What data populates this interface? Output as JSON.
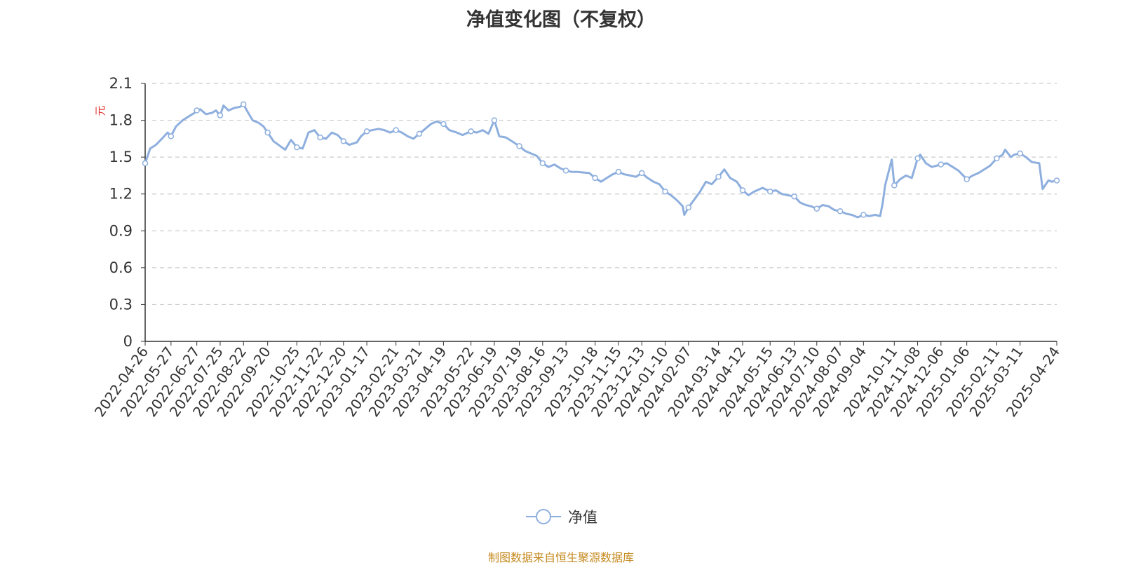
{
  "title": "净值变化图（不复权）",
  "footer": "制图数据来自恒生聚源数据库",
  "colors": {
    "line": "#8eafde",
    "axis": "#333333",
    "grid": "#cccccc",
    "unit": "#e03030",
    "footer": "#c58a1f"
  },
  "chart_data": {
    "type": "line",
    "y_unit": "元",
    "ylim": [
      0,
      2.1
    ],
    "y_ticks": [
      "0",
      "0.3",
      "0.6",
      "0.9",
      "1.2",
      "1.5",
      "1.8",
      "2.1"
    ],
    "x_tick_labels": [
      "2022-04-26",
      "2022-05-27",
      "2022-06-27",
      "2022-07-25",
      "2022-08-22",
      "2022-09-20",
      "2022-10-25",
      "2022-11-22",
      "2022-12-20",
      "2023-01-17",
      "2023-02-21",
      "2023-03-21",
      "2023-04-19",
      "2023-05-22",
      "2023-06-19",
      "2023-07-19",
      "2023-08-16",
      "2023-09-13",
      "2023-10-18",
      "2023-11-15",
      "2023-12-13",
      "2024-01-10",
      "2024-02-07",
      "2024-03-14",
      "2024-04-12",
      "2024-05-15",
      "2024-06-13",
      "2024-07-10",
      "2024-08-07",
      "2024-09-04",
      "2024-10-11",
      "2024-11-08",
      "2024-12-06",
      "2025-01-06",
      "2025-02-11",
      "2025-03-11",
      "2025-04-24"
    ],
    "grid": "horizontal dashed",
    "legend_position": "bottom-center",
    "series": [
      {
        "name": "净值",
        "points": [
          [
            "2022-04-26",
            1.45
          ],
          [
            "2022-05-02",
            1.57
          ],
          [
            "2022-05-09",
            1.6
          ],
          [
            "2022-05-16",
            1.65
          ],
          [
            "2022-05-23",
            1.7
          ],
          [
            "2022-05-27",
            1.67
          ],
          [
            "2022-06-02",
            1.75
          ],
          [
            "2022-06-10",
            1.8
          ],
          [
            "2022-06-17",
            1.83
          ],
          [
            "2022-06-24",
            1.86
          ],
          [
            "2022-06-27",
            1.88
          ],
          [
            "2022-07-01",
            1.89
          ],
          [
            "2022-07-08",
            1.85
          ],
          [
            "2022-07-15",
            1.86
          ],
          [
            "2022-07-20",
            1.88
          ],
          [
            "2022-07-25",
            1.84
          ],
          [
            "2022-07-29",
            1.92
          ],
          [
            "2022-08-04",
            1.88
          ],
          [
            "2022-08-11",
            1.9
          ],
          [
            "2022-08-18",
            1.91
          ],
          [
            "2022-08-22",
            1.93
          ],
          [
            "2022-08-26",
            1.88
          ],
          [
            "2022-09-02",
            1.8
          ],
          [
            "2022-09-09",
            1.78
          ],
          [
            "2022-09-15",
            1.75
          ],
          [
            "2022-09-20",
            1.7
          ],
          [
            "2022-09-27",
            1.63
          ],
          [
            "2022-10-11",
            1.56
          ],
          [
            "2022-10-18",
            1.64
          ],
          [
            "2022-10-25",
            1.58
          ],
          [
            "2022-11-01",
            1.57
          ],
          [
            "2022-11-08",
            1.7
          ],
          [
            "2022-11-15",
            1.72
          ],
          [
            "2022-11-22",
            1.66
          ],
          [
            "2022-11-29",
            1.65
          ],
          [
            "2022-12-06",
            1.7
          ],
          [
            "2022-12-13",
            1.68
          ],
          [
            "2022-12-20",
            1.63
          ],
          [
            "2022-12-27",
            1.6
          ],
          [
            "2023-01-05",
            1.62
          ],
          [
            "2023-01-10",
            1.67
          ],
          [
            "2023-01-17",
            1.71
          ],
          [
            "2023-01-31",
            1.73
          ],
          [
            "2023-02-07",
            1.72
          ],
          [
            "2023-02-14",
            1.7
          ],
          [
            "2023-02-21",
            1.72
          ],
          [
            "2023-02-28",
            1.7
          ],
          [
            "2023-03-07",
            1.67
          ],
          [
            "2023-03-14",
            1.65
          ],
          [
            "2023-03-21",
            1.69
          ],
          [
            "2023-03-28",
            1.73
          ],
          [
            "2023-04-04",
            1.77
          ],
          [
            "2023-04-11",
            1.79
          ],
          [
            "2023-04-19",
            1.77
          ],
          [
            "2023-04-26",
            1.72
          ],
          [
            "2023-05-05",
            1.7
          ],
          [
            "2023-05-12",
            1.68
          ],
          [
            "2023-05-22",
            1.71
          ],
          [
            "2023-05-29",
            1.7
          ],
          [
            "2023-06-05",
            1.72
          ],
          [
            "2023-06-12",
            1.69
          ],
          [
            "2023-06-19",
            1.8
          ],
          [
            "2023-06-25",
            1.67
          ],
          [
            "2023-07-03",
            1.66
          ],
          [
            "2023-07-10",
            1.63
          ],
          [
            "2023-07-19",
            1.59
          ],
          [
            "2023-07-26",
            1.55
          ],
          [
            "2023-08-02",
            1.53
          ],
          [
            "2023-08-09",
            1.51
          ],
          [
            "2023-08-16",
            1.45
          ],
          [
            "2023-08-23",
            1.42
          ],
          [
            "2023-08-30",
            1.44
          ],
          [
            "2023-09-06",
            1.41
          ],
          [
            "2023-09-13",
            1.39
          ],
          [
            "2023-09-20",
            1.38
          ],
          [
            "2023-09-27",
            1.38
          ],
          [
            "2023-10-11",
            1.37
          ],
          [
            "2023-10-18",
            1.33
          ],
          [
            "2023-10-25",
            1.3
          ],
          [
            "2023-11-01",
            1.33
          ],
          [
            "2023-11-08",
            1.36
          ],
          [
            "2023-11-15",
            1.38
          ],
          [
            "2023-11-22",
            1.36
          ],
          [
            "2023-11-29",
            1.35
          ],
          [
            "2023-12-06",
            1.34
          ],
          [
            "2023-12-13",
            1.37
          ],
          [
            "2023-12-20",
            1.33
          ],
          [
            "2023-12-27",
            1.3
          ],
          [
            "2024-01-03",
            1.28
          ],
          [
            "2024-01-10",
            1.22
          ],
          [
            "2024-01-17",
            1.19
          ],
          [
            "2024-01-24",
            1.15
          ],
          [
            "2024-01-31",
            1.1
          ],
          [
            "2024-02-02",
            1.03
          ],
          [
            "2024-02-07",
            1.09
          ],
          [
            "2024-02-21",
            1.22
          ],
          [
            "2024-02-28",
            1.3
          ],
          [
            "2024-03-06",
            1.28
          ],
          [
            "2024-03-14",
            1.34
          ],
          [
            "2024-03-21",
            1.4
          ],
          [
            "2024-03-28",
            1.33
          ],
          [
            "2024-04-05",
            1.3
          ],
          [
            "2024-04-12",
            1.23
          ],
          [
            "2024-04-19",
            1.19
          ],
          [
            "2024-04-26",
            1.22
          ],
          [
            "2024-05-06",
            1.25
          ],
          [
            "2024-05-15",
            1.22
          ],
          [
            "2024-05-22",
            1.23
          ],
          [
            "2024-05-29",
            1.2
          ],
          [
            "2024-06-05",
            1.19
          ],
          [
            "2024-06-13",
            1.18
          ],
          [
            "2024-06-20",
            1.13
          ],
          [
            "2024-06-27",
            1.11
          ],
          [
            "2024-07-03",
            1.1
          ],
          [
            "2024-07-10",
            1.08
          ],
          [
            "2024-07-17",
            1.11
          ],
          [
            "2024-07-24",
            1.1
          ],
          [
            "2024-07-31",
            1.07
          ],
          [
            "2024-08-07",
            1.06
          ],
          [
            "2024-08-14",
            1.04
          ],
          [
            "2024-08-21",
            1.03
          ],
          [
            "2024-08-28",
            1.01
          ],
          [
            "2024-09-04",
            1.03
          ],
          [
            "2024-09-11",
            1.02
          ],
          [
            "2024-09-18",
            1.03
          ],
          [
            "2024-09-24",
            1.02
          ],
          [
            "2024-09-27",
            1.12
          ],
          [
            "2024-09-30",
            1.27
          ],
          [
            "2024-10-08",
            1.48
          ],
          [
            "2024-10-11",
            1.27
          ],
          [
            "2024-10-18",
            1.32
          ],
          [
            "2024-10-25",
            1.35
          ],
          [
            "2024-11-01",
            1.33
          ],
          [
            "2024-11-08",
            1.49
          ],
          [
            "2024-11-11",
            1.52
          ],
          [
            "2024-11-18",
            1.45
          ],
          [
            "2024-11-25",
            1.42
          ],
          [
            "2024-12-06",
            1.44
          ],
          [
            "2024-12-13",
            1.45
          ],
          [
            "2024-12-20",
            1.42
          ],
          [
            "2024-12-27",
            1.39
          ],
          [
            "2025-01-06",
            1.32
          ],
          [
            "2025-01-13",
            1.35
          ],
          [
            "2025-01-20",
            1.37
          ],
          [
            "2025-02-03",
            1.43
          ],
          [
            "2025-02-11",
            1.49
          ],
          [
            "2025-02-18",
            1.52
          ],
          [
            "2025-02-21",
            1.56
          ],
          [
            "2025-02-28",
            1.5
          ],
          [
            "2025-03-04",
            1.52
          ],
          [
            "2025-03-11",
            1.53
          ],
          [
            "2025-03-18",
            1.5
          ],
          [
            "2025-03-25",
            1.46
          ],
          [
            "2025-04-03",
            1.45
          ],
          [
            "2025-04-07",
            1.24
          ],
          [
            "2025-04-14",
            1.31
          ],
          [
            "2025-04-18",
            1.3
          ],
          [
            "2025-04-24",
            1.31
          ]
        ],
        "marker_dates": [
          "2022-04-26",
          "2022-05-27",
          "2022-06-27",
          "2022-07-25",
          "2022-08-22",
          "2022-09-20",
          "2022-10-25",
          "2022-11-22",
          "2022-12-20",
          "2023-01-17",
          "2023-02-21",
          "2023-03-21",
          "2023-04-19",
          "2023-05-22",
          "2023-06-19",
          "2023-07-19",
          "2023-08-16",
          "2023-09-13",
          "2023-10-18",
          "2023-11-15",
          "2023-12-13",
          "2024-01-10",
          "2024-02-07",
          "2024-03-14",
          "2024-04-12",
          "2024-05-15",
          "2024-06-13",
          "2024-07-10",
          "2024-08-07",
          "2024-09-04",
          "2024-10-11",
          "2024-11-08",
          "2024-12-06",
          "2025-01-06",
          "2025-02-11",
          "2025-03-11",
          "2025-04-24"
        ]
      }
    ]
  }
}
